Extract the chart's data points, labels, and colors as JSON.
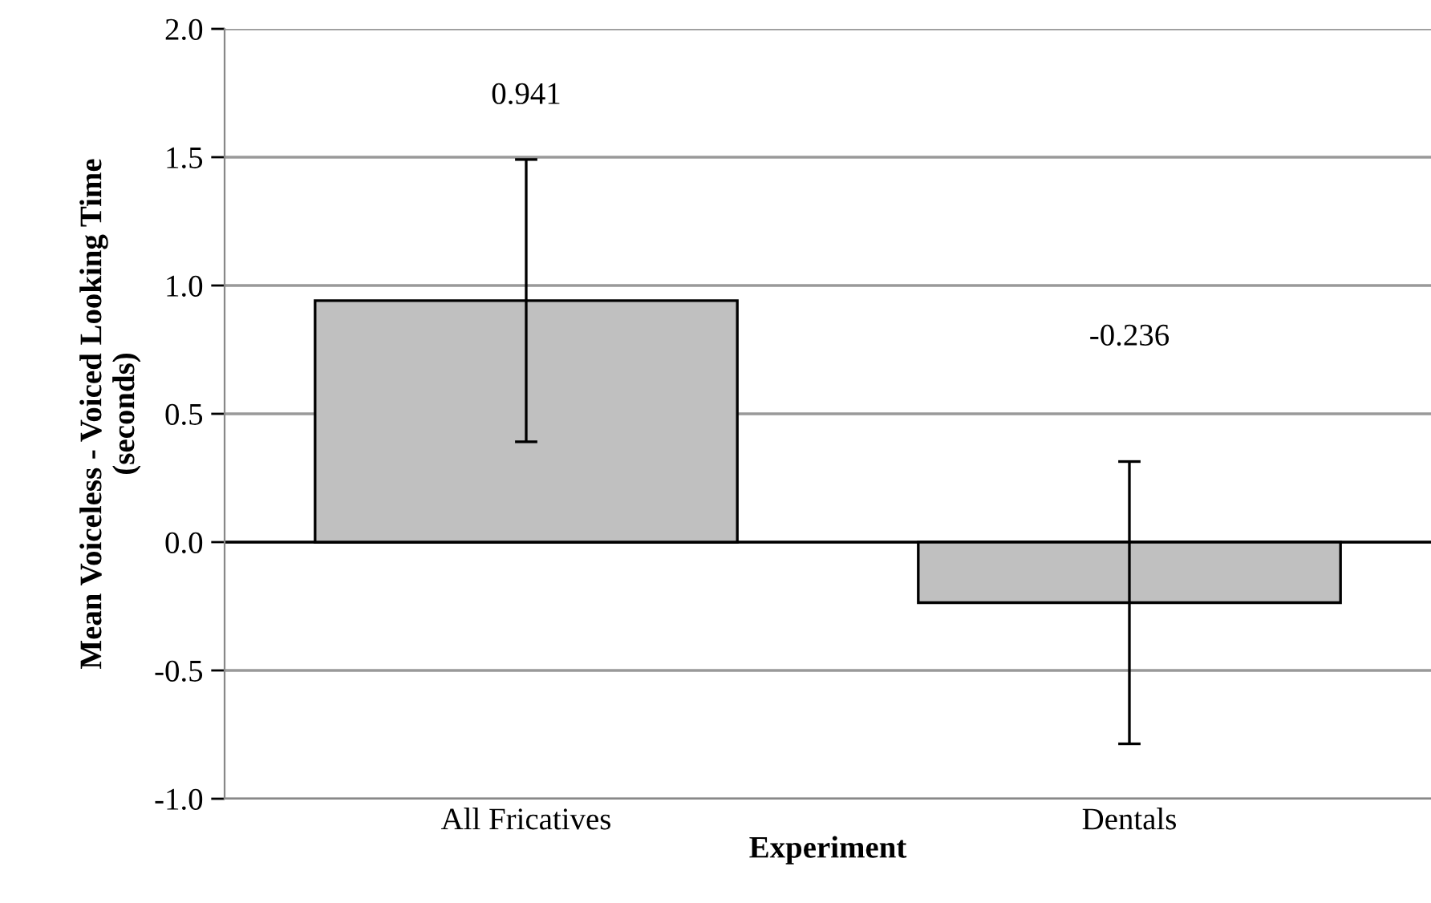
{
  "chart_data": {
    "type": "bar",
    "xlabel": "Experiment",
    "ylabel": "Mean Voiceless - Voiced Looking Time\n(seconds)",
    "categories": [
      "All Fricatives",
      "Dentals"
    ],
    "values": [
      0.941,
      -0.236
    ],
    "errors": [
      0.55,
      0.55
    ],
    "color": "#c0c0c0",
    "annotations": [
      "0.941",
      "-0.236"
    ],
    "ylim": [
      -1.0,
      2.0
    ],
    "yticks": [
      {
        "value": -1.0,
        "label": "-1.0"
      },
      {
        "value": -0.5,
        "label": "-0.5"
      },
      {
        "value": 0.0,
        "label": "0.0"
      },
      {
        "value": 0.5,
        "label": "0.5"
      },
      {
        "value": 1.0,
        "label": "1.0"
      },
      {
        "value": 1.5,
        "label": "1.5"
      },
      {
        "value": 2.0,
        "label": "2.0"
      }
    ],
    "grid": "y",
    "legend": false
  }
}
